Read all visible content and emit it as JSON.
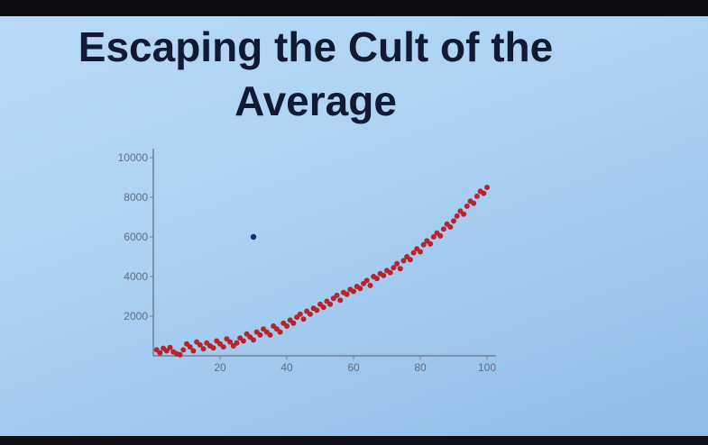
{
  "slide": {
    "title": "Escaping the Cult of the\nAverage"
  },
  "chart_data": {
    "type": "scatter",
    "title": "Escaping the Cult of the Average",
    "xlabel": "",
    "ylabel": "",
    "xlim": [
      0,
      100
    ],
    "ylim": [
      0,
      10000
    ],
    "xticks": [
      20,
      40,
      60,
      80,
      100
    ],
    "xtick_labels": [
      "20",
      "40",
      "60",
      "80",
      "100"
    ],
    "yticks": [
      2000,
      4000,
      6000,
      8000,
      10000
    ],
    "ytick_labels": [
      "2000",
      "4000",
      "6000",
      "8000",
      "10000"
    ],
    "grid": false,
    "series": [
      {
        "color": "#b8232c",
        "points": [
          [
            1,
            300
          ],
          [
            2,
            150
          ],
          [
            3,
            380
          ],
          [
            4,
            250
          ],
          [
            5,
            420
          ],
          [
            6,
            200
          ],
          [
            7,
            100
          ],
          [
            8,
            50
          ],
          [
            9,
            300
          ],
          [
            10,
            600
          ],
          [
            11,
            450
          ],
          [
            12,
            250
          ],
          [
            13,
            700
          ],
          [
            14,
            550
          ],
          [
            15,
            350
          ],
          [
            16,
            650
          ],
          [
            17,
            500
          ],
          [
            18,
            400
          ],
          [
            19,
            750
          ],
          [
            20,
            600
          ],
          [
            21,
            450
          ],
          [
            22,
            850
          ],
          [
            23,
            700
          ],
          [
            24,
            500
          ],
          [
            25,
            650
          ],
          [
            26,
            900
          ],
          [
            27,
            750
          ],
          [
            28,
            1100
          ],
          [
            29,
            950
          ],
          [
            30,
            800
          ],
          [
            31,
            1200
          ],
          [
            32,
            1050
          ],
          [
            33,
            1350
          ],
          [
            34,
            1200
          ],
          [
            35,
            1050
          ],
          [
            36,
            1500
          ],
          [
            37,
            1350
          ],
          [
            38,
            1200
          ],
          [
            39,
            1650
          ],
          [
            40,
            1500
          ],
          [
            41,
            1800
          ],
          [
            42,
            1650
          ],
          [
            43,
            1950
          ],
          [
            44,
            2100
          ],
          [
            45,
            1850
          ],
          [
            46,
            2250
          ],
          [
            47,
            2100
          ],
          [
            48,
            2400
          ],
          [
            49,
            2300
          ],
          [
            50,
            2600
          ],
          [
            51,
            2450
          ],
          [
            52,
            2750
          ],
          [
            53,
            2600
          ],
          [
            54,
            2900
          ],
          [
            55,
            3050
          ],
          [
            56,
            2800
          ],
          [
            57,
            3200
          ],
          [
            58,
            3100
          ],
          [
            59,
            3350
          ],
          [
            60,
            3250
          ],
          [
            61,
            3500
          ],
          [
            62,
            3400
          ],
          [
            63,
            3650
          ],
          [
            64,
            3800
          ],
          [
            65,
            3550
          ],
          [
            66,
            4000
          ],
          [
            67,
            3900
          ],
          [
            68,
            4150
          ],
          [
            69,
            4050
          ],
          [
            70,
            4300
          ],
          [
            71,
            4200
          ],
          [
            72,
            4450
          ],
          [
            73,
            4650
          ],
          [
            74,
            4400
          ],
          [
            75,
            4800
          ],
          [
            76,
            5000
          ],
          [
            77,
            4850
          ],
          [
            78,
            5200
          ],
          [
            79,
            5400
          ],
          [
            80,
            5250
          ],
          [
            81,
            5600
          ],
          [
            82,
            5800
          ],
          [
            83,
            5650
          ],
          [
            84,
            6000
          ],
          [
            85,
            6200
          ],
          [
            86,
            6050
          ],
          [
            87,
            6400
          ],
          [
            88,
            6650
          ],
          [
            89,
            6500
          ],
          [
            90,
            6800
          ],
          [
            91,
            7050
          ],
          [
            92,
            7300
          ],
          [
            93,
            7150
          ],
          [
            94,
            7550
          ],
          [
            95,
            7800
          ],
          [
            96,
            7700
          ],
          [
            97,
            8050
          ],
          [
            98,
            8300
          ],
          [
            99,
            8200
          ],
          [
            100,
            8500
          ]
        ]
      },
      {
        "color": "#1d2d7a",
        "points": [
          [
            30,
            6000
          ]
        ]
      }
    ]
  }
}
